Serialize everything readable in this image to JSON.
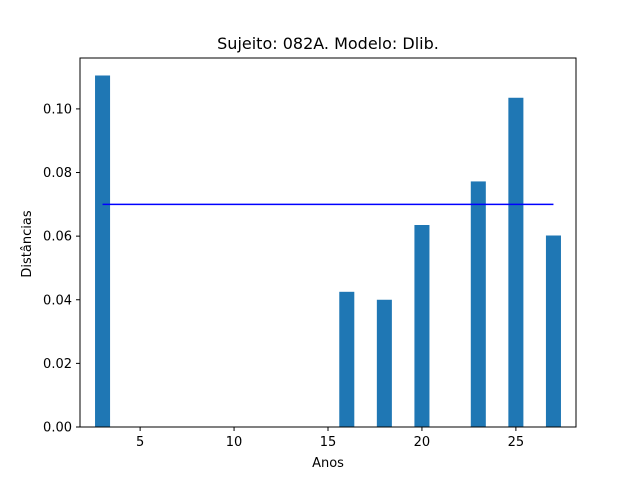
{
  "chart_data": {
    "type": "bar",
    "title": "Sujeito: 082A. Modelo: Dlib.",
    "xlabel": "Anos",
    "ylabel": "Distâncias",
    "xlim": [
      1.8,
      28.2
    ],
    "ylim": [
      0,
      0.116
    ],
    "xticks": [
      5,
      10,
      15,
      20,
      25
    ],
    "yticks": [
      0.0,
      0.02,
      0.04,
      0.06,
      0.08,
      0.1
    ],
    "grid": false,
    "bar_width_years": 0.8,
    "bar_color": "#1f77b4",
    "series": [
      {
        "x": [
          3,
          16,
          18,
          20,
          23,
          25,
          27
        ],
        "values": [
          0.1105,
          0.0425,
          0.04,
          0.0635,
          0.0772,
          0.1035,
          0.0602
        ]
      }
    ],
    "threshold_line": {
      "x": [
        3,
        27
      ],
      "y": 0.07,
      "color": "#0000ff"
    }
  }
}
